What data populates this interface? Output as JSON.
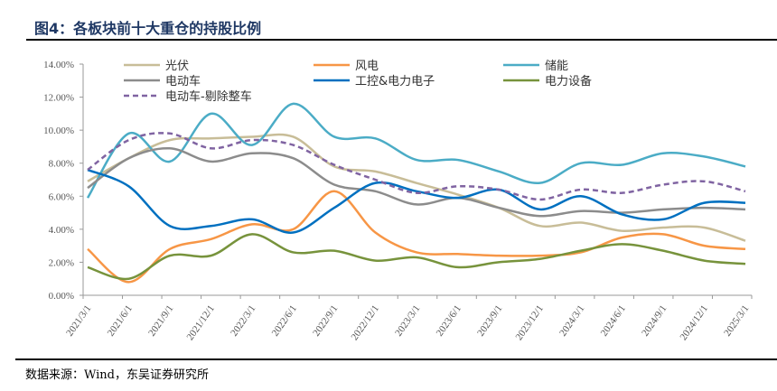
{
  "title": "图4：各板块前十大重仓的持股比例",
  "source": "数据来源：Wind，东吴证券研究所",
  "chart_data": {
    "type": "line",
    "title": "各板块前十大重仓的持股比例",
    "xlabel": "",
    "ylabel": "",
    "ylim": [
      0,
      14
    ],
    "yticks": [
      "0.00%",
      "2.00%",
      "4.00%",
      "6.00%",
      "8.00%",
      "10.00%",
      "12.00%",
      "14.00%"
    ],
    "legend_position": "top",
    "categories": [
      "2021/3/1",
      "2021/6/1",
      "2021/9/1",
      "2021/12/1",
      "2022/3/1",
      "2022/6/1",
      "2022/9/1",
      "2022/12/1",
      "2023/3/1",
      "2023/6/1",
      "2023/9/1",
      "2023/12/1",
      "2024/3/1",
      "2024/6/1",
      "2024/9/1",
      "2024/12/1",
      "2025/3/1"
    ],
    "series": [
      {
        "name": "光伏",
        "color": "#c8bd98",
        "dash": false,
        "values": [
          6.9,
          8.3,
          9.4,
          9.5,
          9.6,
          9.6,
          7.8,
          7.5,
          6.8,
          6.1,
          5.3,
          4.2,
          4.4,
          3.9,
          4.1,
          4.1,
          3.3
        ]
      },
      {
        "name": "风电",
        "color": "#f79646",
        "dash": false,
        "values": [
          2.8,
          0.8,
          2.8,
          3.4,
          4.3,
          4.0,
          6.3,
          3.8,
          2.6,
          2.5,
          2.4,
          2.4,
          2.6,
          3.5,
          3.7,
          3.0,
          2.8
        ]
      },
      {
        "name": "储能",
        "color": "#4bacc6",
        "dash": false,
        "values": [
          5.9,
          9.8,
          8.1,
          11.0,
          9.1,
          11.6,
          9.6,
          9.5,
          8.2,
          8.2,
          7.5,
          6.8,
          8.0,
          7.9,
          8.6,
          8.4,
          7.8
        ]
      },
      {
        "name": "电动车",
        "color": "#8c8c8c",
        "dash": false,
        "values": [
          6.5,
          8.3,
          8.9,
          8.1,
          8.6,
          8.3,
          6.7,
          6.3,
          5.5,
          5.9,
          5.3,
          4.8,
          5.1,
          5.0,
          5.2,
          5.3,
          5.2
        ]
      },
      {
        "name": "工控&电力电子",
        "color": "#0070c0",
        "dash": false,
        "values": [
          7.6,
          6.6,
          4.2,
          4.2,
          4.6,
          3.8,
          5.3,
          6.8,
          6.3,
          5.9,
          6.4,
          5.2,
          6.0,
          4.9,
          4.6,
          5.6,
          5.6
        ]
      },
      {
        "name": "电力设备",
        "color": "#77933c",
        "dash": false,
        "values": [
          1.7,
          1.0,
          2.4,
          2.4,
          3.7,
          2.6,
          2.7,
          2.1,
          2.3,
          1.7,
          2.0,
          2.2,
          2.7,
          3.1,
          2.7,
          2.1,
          1.9
        ]
      },
      {
        "name": "电动车-剔除整车",
        "color": "#8064a2",
        "dash": true,
        "values": [
          7.6,
          9.4,
          9.8,
          8.9,
          9.4,
          9.1,
          7.9,
          7.0,
          6.2,
          6.6,
          6.4,
          5.8,
          6.4,
          6.2,
          6.7,
          6.9,
          6.3
        ]
      }
    ]
  }
}
